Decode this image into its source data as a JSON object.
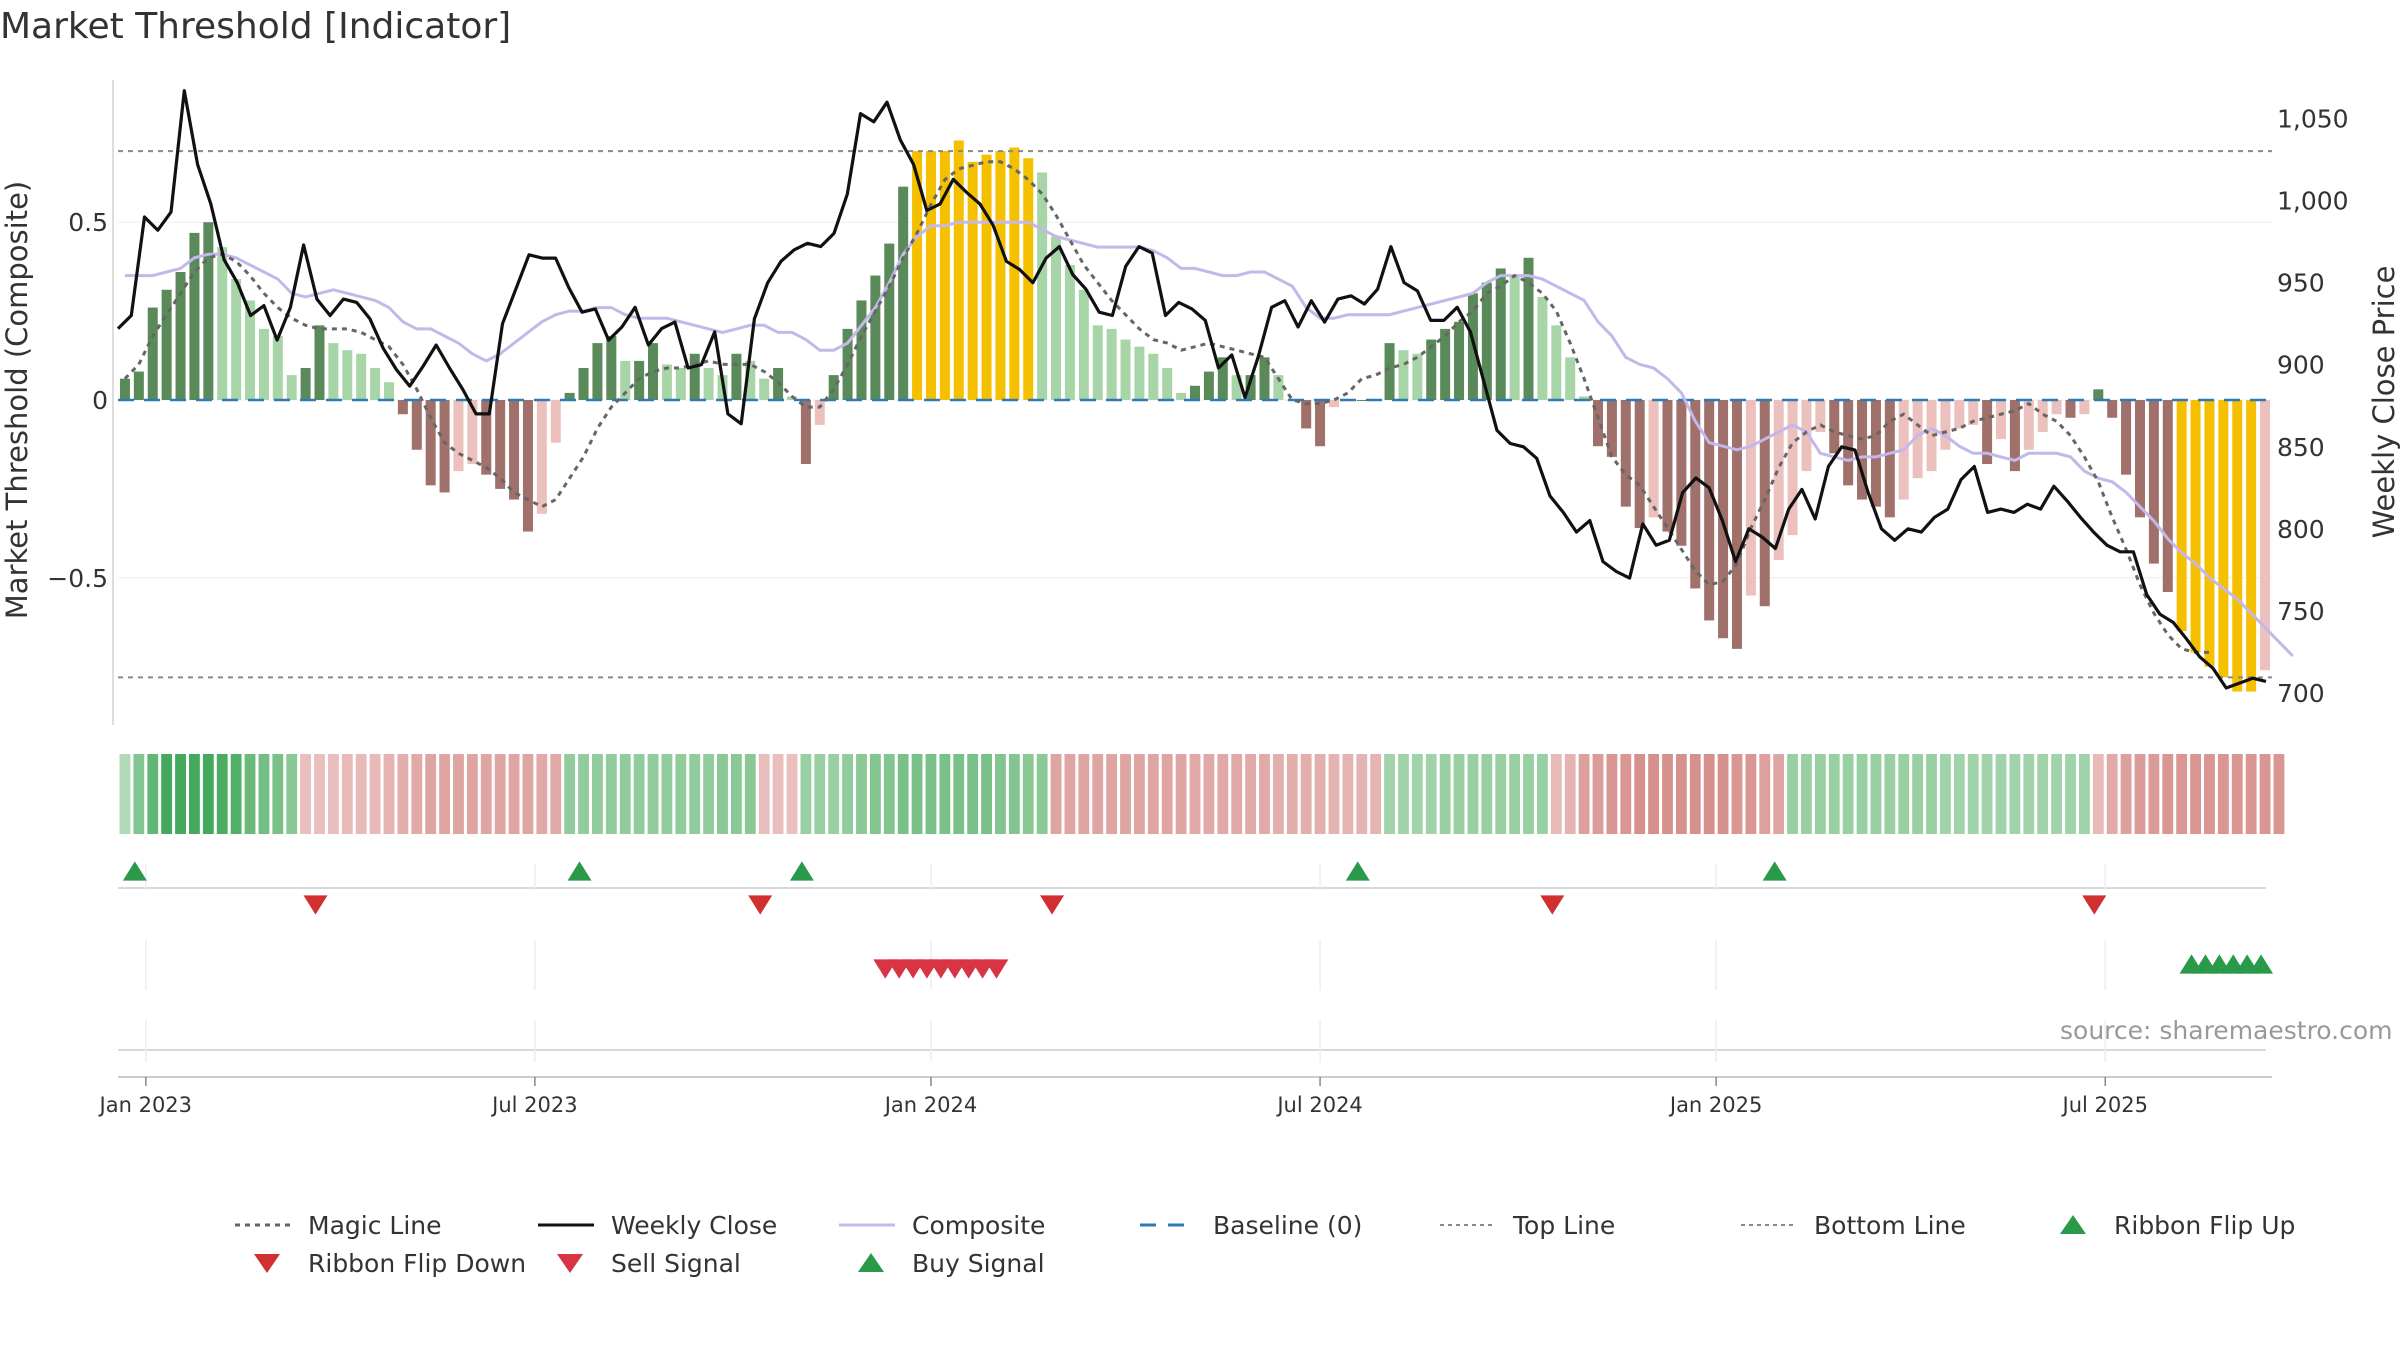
{
  "title": "Market Threshold [Indicator]",
  "source": "source: sharemaestro.com",
  "colors": {
    "dark_green": "#5a8a5a",
    "light_green": "#a8d5a8",
    "dark_red": "#a0706a",
    "light_red": "#ecc0bc",
    "gold": "#f5c000",
    "composite": "#c4b8ea",
    "close": "#111111",
    "magic": "#666666",
    "baseline": "#2e7bb5",
    "buy": "#2a9a4a",
    "sell": "#d93444"
  },
  "chart_data": {
    "type": "bar",
    "title": "Market Threshold [Indicator]",
    "ylabel_left": "Market Threshold (Composite)",
    "ylabel_right": "Weekly Close Price",
    "y_left_range": [
      -0.9,
      0.9
    ],
    "y_left_ticks": [
      {
        "v": 0.5,
        "label": "0.5"
      },
      {
        "v": 0,
        "label": "0"
      },
      {
        "v": -0.5,
        "label": "−0.5"
      }
    ],
    "y_right_range": [
      683.5,
      1073.5
    ],
    "y_right_ticks": [
      {
        "v": 1050,
        "label": "1,050"
      },
      {
        "v": 1000,
        "label": "1,000"
      },
      {
        "v": 950,
        "label": "950"
      },
      {
        "v": 900,
        "label": "900"
      },
      {
        "v": 850,
        "label": "850"
      },
      {
        "v": 800,
        "label": "800"
      },
      {
        "v": 750,
        "label": "750"
      },
      {
        "v": 700,
        "label": "700"
      }
    ],
    "top_line": 0.7,
    "bottom_line": -0.78,
    "weeks": 155,
    "x_ticks": [
      {
        "week": 1.5,
        "label": "Jan 2023"
      },
      {
        "week": 29.5,
        "label": "Jul 2023"
      },
      {
        "week": 58,
        "label": "Jan 2024"
      },
      {
        "week": 86,
        "label": "Jul 2024"
      },
      {
        "week": 114.5,
        "label": "Jan 2025"
      },
      {
        "week": 142.5,
        "label": "Jul 2025"
      }
    ],
    "histogram": [
      0.06,
      0.08,
      0.26,
      0.31,
      0.36,
      0.47,
      0.5,
      0.43,
      0.34,
      0.28,
      0.2,
      0.18,
      0.07,
      0.09,
      0.21,
      0.16,
      0.14,
      0.13,
      0.09,
      0.05,
      -0.04,
      -0.14,
      -0.24,
      -0.26,
      -0.2,
      -0.18,
      -0.21,
      -0.25,
      -0.28,
      -0.37,
      -0.32,
      -0.12,
      0.02,
      0.09,
      0.16,
      0.18,
      0.11,
      0.11,
      0.16,
      0.1,
      0.09,
      0.13,
      0.09,
      0.07,
      0.13,
      0.11,
      0.06,
      0.09,
      0.01,
      -0.18,
      -0.07,
      0.07,
      0.2,
      0.28,
      0.35,
      0.44,
      0.6,
      0.7,
      0.7,
      0.7,
      0.73,
      0.67,
      0.69,
      0.7,
      0.71,
      0.68,
      0.64,
      0.46,
      0.38,
      0.31,
      0.21,
      0.2,
      0.17,
      0.15,
      0.13,
      0.09,
      0.02,
      0.04,
      0.08,
      0.12,
      0.07,
      0.07,
      0.12,
      0.07,
      0.0,
      -0.08,
      -0.13,
      -0.02,
      0.0,
      0.0,
      0.0,
      0.16,
      0.14,
      0.13,
      0.17,
      0.2,
      0.22,
      0.3,
      0.33,
      0.37,
      0.35,
      0.4,
      0.29,
      0.21,
      0.12,
      0.01,
      -0.13,
      -0.16,
      -0.3,
      -0.36,
      -0.33,
      -0.37,
      -0.41,
      -0.53,
      -0.62,
      -0.67,
      -0.7,
      -0.55,
      -0.58,
      -0.45,
      -0.38,
      -0.2,
      -0.09,
      -0.15,
      -0.24,
      -0.28,
      -0.3,
      -0.33,
      -0.28,
      -0.22,
      -0.2,
      -0.14,
      -0.08,
      -0.07,
      -0.18,
      -0.11,
      -0.2,
      -0.14,
      -0.09,
      -0.04,
      -0.05,
      -0.04,
      0.03,
      -0.05,
      -0.21,
      -0.33,
      -0.46,
      -0.54,
      -0.65,
      -0.71,
      -0.75,
      -0.78,
      -0.82,
      -0.82,
      -0.76
    ],
    "gold_bars": [
      57,
      58,
      59,
      60,
      61,
      62,
      63,
      64,
      65,
      148,
      149,
      150,
      151,
      152,
      153
    ],
    "series": [
      {
        "name": "Composite",
        "axis": "left",
        "values": [
          0.35,
          0.35,
          0.35,
          0.36,
          0.37,
          0.4,
          0.41,
          0.41,
          0.4,
          0.38,
          0.36,
          0.34,
          0.3,
          0.29,
          0.3,
          0.31,
          0.3,
          0.29,
          0.28,
          0.26,
          0.22,
          0.2,
          0.2,
          0.18,
          0.16,
          0.13,
          0.11,
          0.13,
          0.16,
          0.19,
          0.22,
          0.24,
          0.25,
          0.25,
          0.26,
          0.26,
          0.24,
          0.23,
          0.23,
          0.23,
          0.22,
          0.21,
          0.2,
          0.19,
          0.2,
          0.21,
          0.21,
          0.19,
          0.19,
          0.17,
          0.14,
          0.14,
          0.16,
          0.21,
          0.26,
          0.33,
          0.41,
          0.46,
          0.49,
          0.49,
          0.5,
          0.5,
          0.5,
          0.5,
          0.5,
          0.5,
          0.48,
          0.46,
          0.45,
          0.44,
          0.43,
          0.43,
          0.43,
          0.43,
          0.42,
          0.4,
          0.37,
          0.37,
          0.36,
          0.35,
          0.35,
          0.36,
          0.36,
          0.34,
          0.32,
          0.26,
          0.23,
          0.23,
          0.24,
          0.24,
          0.24,
          0.24,
          0.25,
          0.26,
          0.27,
          0.28,
          0.29,
          0.3,
          0.33,
          0.35,
          0.35,
          0.35,
          0.34,
          0.32,
          0.3,
          0.28,
          0.22,
          0.18,
          0.12,
          0.1,
          0.09,
          0.06,
          0.02,
          -0.06,
          -0.12,
          -0.13,
          -0.14,
          -0.13,
          -0.11,
          -0.09,
          -0.07,
          -0.09,
          -0.15,
          -0.16,
          -0.17,
          -0.16,
          -0.16,
          -0.15,
          -0.14,
          -0.1,
          -0.08,
          -0.1,
          -0.13,
          -0.15,
          -0.15,
          -0.16,
          -0.17,
          -0.15,
          -0.15,
          -0.15,
          -0.16,
          -0.2,
          -0.22,
          -0.23,
          -0.26,
          -0.3,
          -0.34,
          -0.39,
          -0.43,
          -0.46,
          -0.5,
          -0.53,
          -0.56,
          -0.6,
          -0.64,
          -0.68,
          -0.72
        ]
      },
      {
        "name": "Magic Line",
        "axis": "left",
        "values": [
          0.06,
          0.1,
          0.18,
          0.24,
          0.3,
          0.36,
          0.4,
          0.41,
          0.39,
          0.35,
          0.3,
          0.26,
          0.23,
          0.21,
          0.2,
          0.2,
          0.2,
          0.19,
          0.17,
          0.15,
          0.1,
          0.03,
          -0.05,
          -0.12,
          -0.15,
          -0.17,
          -0.19,
          -0.22,
          -0.26,
          -0.28,
          -0.3,
          -0.28,
          -0.22,
          -0.16,
          -0.08,
          -0.02,
          0.02,
          0.06,
          0.08,
          0.09,
          0.09,
          0.1,
          0.11,
          0.1,
          0.1,
          0.1,
          0.08,
          0.05,
          0.01,
          -0.02,
          -0.02,
          0.03,
          0.1,
          0.18,
          0.25,
          0.32,
          0.4,
          0.47,
          0.55,
          0.62,
          0.65,
          0.66,
          0.67,
          0.67,
          0.65,
          0.62,
          0.58,
          0.52,
          0.45,
          0.38,
          0.33,
          0.28,
          0.24,
          0.2,
          0.17,
          0.16,
          0.14,
          0.15,
          0.16,
          0.15,
          0.14,
          0.13,
          0.12,
          0.06,
          0.0,
          -0.01,
          -0.01,
          0.0,
          0.02,
          0.06,
          0.07,
          0.09,
          0.1,
          0.12,
          0.15,
          0.18,
          0.22,
          0.25,
          0.3,
          0.32,
          0.35,
          0.33,
          0.3,
          0.25,
          0.16,
          0.06,
          -0.05,
          -0.16,
          -0.21,
          -0.24,
          -0.3,
          -0.36,
          -0.42,
          -0.48,
          -0.52,
          -0.51,
          -0.46,
          -0.36,
          -0.28,
          -0.19,
          -0.12,
          -0.09,
          -0.07,
          -0.09,
          -0.1,
          -0.11,
          -0.1,
          -0.06,
          -0.04,
          -0.07,
          -0.1,
          -0.09,
          -0.08,
          -0.06,
          -0.05,
          -0.04,
          -0.03,
          -0.01,
          -0.04,
          -0.06,
          -0.1,
          -0.16,
          -0.23,
          -0.33,
          -0.42,
          -0.52,
          -0.6,
          -0.66,
          -0.7,
          -0.71,
          -0.71
        ]
      },
      {
        "name": "Weekly Close",
        "axis": "right",
        "values": [
          922,
          930,
          990,
          982,
          993,
          1067,
          1022,
          998,
          964,
          950,
          930,
          936,
          915,
          935,
          973,
          940,
          930,
          940,
          938,
          928,
          910,
          897,
          887,
          899,
          912,
          898,
          885,
          870,
          870,
          925,
          946,
          967,
          965,
          965,
          947,
          932,
          934,
          915,
          923,
          935,
          912,
          922,
          926,
          898,
          900,
          920,
          870,
          864,
          928,
          950,
          963,
          970,
          974,
          972,
          980,
          1004,
          1053,
          1048,
          1060,
          1037,
          1022,
          994,
          998,
          1013,
          1005,
          998,
          985,
          963,
          958,
          950,
          965,
          972,
          955,
          946,
          932,
          930,
          960,
          972,
          968,
          930,
          938,
          934,
          927,
          898,
          906,
          880,
          905,
          935,
          939,
          923,
          939,
          926,
          940,
          942,
          937,
          946,
          972,
          950,
          945,
          927,
          927,
          935,
          920,
          890,
          860,
          852,
          850,
          843,
          820,
          810,
          798,
          805,
          780,
          774,
          770,
          803,
          790,
          793,
          822,
          831,
          825,
          805,
          780,
          800,
          795,
          788,
          812,
          824,
          806,
          838,
          850,
          848,
          822,
          800,
          793,
          800,
          798,
          807,
          812,
          830,
          838,
          810,
          812,
          810,
          815,
          812,
          826,
          817,
          807,
          798,
          790,
          786,
          786,
          760,
          748,
          743,
          733,
          722,
          715
        ],
        "close_tail": [
          703,
          706,
          709,
          707
        ]
      }
    ]
  },
  "ribbon": [
    0.25,
    0.55,
    0.75,
    0.95,
    0.95,
    0.95,
    0.95,
    0.9,
    0.85,
    0.7,
    0.65,
    0.6,
    0.5,
    -0.3,
    -0.3,
    -0.3,
    -0.35,
    -0.35,
    -0.35,
    -0.4,
    -0.45,
    -0.5,
    -0.55,
    -0.55,
    -0.55,
    -0.55,
    -0.55,
    -0.55,
    -0.55,
    -0.55,
    -0.5,
    -0.5,
    0.45,
    0.45,
    0.45,
    0.45,
    0.45,
    0.45,
    0.45,
    0.45,
    0.45,
    0.45,
    0.45,
    0.5,
    0.5,
    0.5,
    -0.3,
    -0.3,
    -0.3,
    0.4,
    0.4,
    0.4,
    0.45,
    0.5,
    0.55,
    0.55,
    0.6,
    0.6,
    0.6,
    0.6,
    0.6,
    0.6,
    0.6,
    0.55,
    0.55,
    0.5,
    0.5,
    -0.55,
    -0.55,
    -0.55,
    -0.55,
    -0.55,
    -0.55,
    -0.55,
    -0.55,
    -0.55,
    -0.55,
    -0.5,
    -0.5,
    -0.5,
    -0.5,
    -0.5,
    -0.5,
    -0.45,
    -0.45,
    -0.45,
    -0.45,
    -0.4,
    -0.4,
    -0.4,
    -0.4,
    0.35,
    0.35,
    0.35,
    0.35,
    0.4,
    0.4,
    0.4,
    0.4,
    0.4,
    0.4,
    0.4,
    0.4,
    -0.35,
    -0.4,
    -0.6,
    -0.65,
    -0.7,
    -0.7,
    -0.75,
    -0.75,
    -0.75,
    -0.75,
    -0.75,
    -0.75,
    -0.75,
    -0.7,
    -0.7,
    -0.6,
    -0.55,
    0.4,
    0.4,
    0.4,
    0.4,
    0.4,
    0.4,
    0.4,
    0.4,
    0.4,
    0.4,
    0.4,
    0.35,
    0.35,
    0.35,
    0.35,
    0.35,
    0.35,
    0.35,
    0.35,
    0.35,
    0.35,
    0.35,
    -0.35,
    -0.5,
    -0.6,
    -0.65,
    -0.65,
    -0.7,
    -0.7,
    -0.7,
    -0.7,
    -0.7,
    -0.7,
    -0.7,
    -0.7,
    -0.7
  ],
  "ribbon_flip_up_weeks": [
    1,
    33,
    49,
    89,
    119
  ],
  "ribbon_flip_down_weeks": [
    14,
    46,
    67,
    103,
    142
  ],
  "sell_signal_weeks": [
    55,
    56,
    57,
    58,
    59,
    60,
    61,
    62,
    63
  ],
  "buy_signal_weeks": [
    149,
    150,
    151,
    152,
    153,
    154
  ],
  "legend": [
    {
      "label": "Magic Line",
      "type": "dotted",
      "color": "#666666"
    },
    {
      "label": "Weekly Close",
      "type": "solid",
      "color": "#111111"
    },
    {
      "label": "Composite",
      "type": "solid",
      "color": "#c4b8ea"
    },
    {
      "label": "Baseline (0)",
      "type": "dashed",
      "color": "#2e7bb5"
    },
    {
      "label": "Top Line",
      "type": "dotted-light",
      "color": "#888888"
    },
    {
      "label": "Bottom Line",
      "type": "dotted-light",
      "color": "#888888"
    },
    {
      "label": "Ribbon Flip Up",
      "type": "tri-up",
      "color": "#2a9a4a"
    },
    {
      "label": "Ribbon Flip Down",
      "type": "tri-down",
      "color": "#d03030"
    },
    {
      "label": "Sell Signal",
      "type": "tri-down",
      "color": "#d93444"
    },
    {
      "label": "Buy Signal",
      "type": "tri-up",
      "color": "#2a9a4a"
    }
  ]
}
